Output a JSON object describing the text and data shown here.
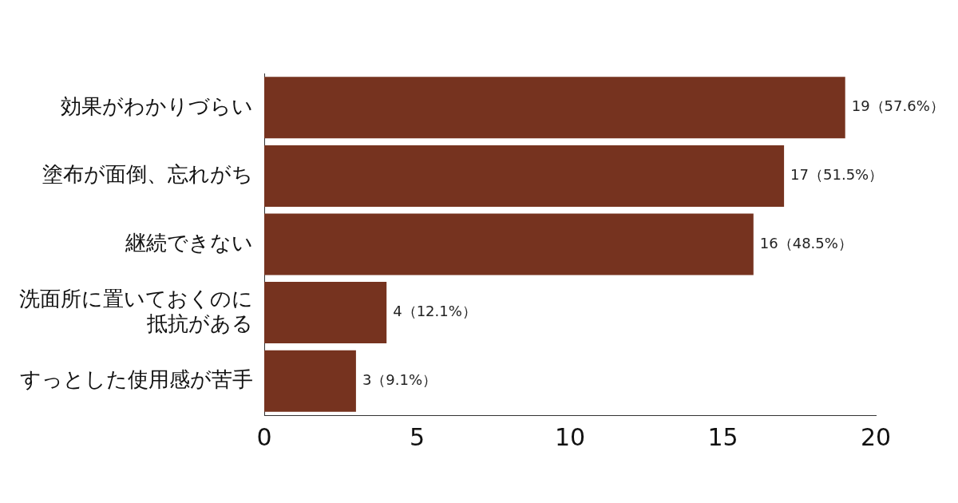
{
  "chart_data": {
    "type": "bar",
    "orientation": "horizontal",
    "categories": [
      "効果がわかりづらい",
      "塗布が面倒、忘れがち",
      "継続できない",
      "洗面所に置いておくのに抵抗がある",
      "すっとした使用感が苦手"
    ],
    "values": [
      19,
      17,
      16,
      4,
      3
    ],
    "value_labels": [
      "19（57.6%）",
      "17（51.5%）",
      "16（48.5%）",
      "4（12.1%）",
      "3（9.1%）"
    ],
    "color": "#76331f",
    "xlim": [
      0,
      20
    ],
    "xticks": [
      0,
      5,
      10,
      15,
      20
    ],
    "grid": false,
    "legend": false
  }
}
